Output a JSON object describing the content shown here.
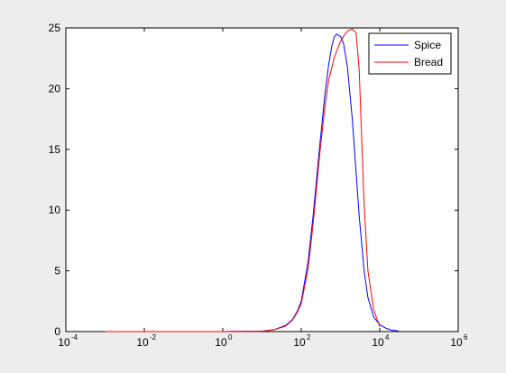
{
  "chart_data": {
    "type": "line",
    "title": "",
    "xlabel": "",
    "ylabel": "",
    "xscale": "log",
    "xlim": [
      0.0001,
      1000000
    ],
    "ylim": [
      0,
      25
    ],
    "grid": false,
    "legend_position": "top-right",
    "x_ticks": [
      {
        "base": "10",
        "exp": "-4"
      },
      {
        "base": "10",
        "exp": "-2"
      },
      {
        "base": "10",
        "exp": "0"
      },
      {
        "base": "10",
        "exp": "2"
      },
      {
        "base": "10",
        "exp": "4"
      },
      {
        "base": "10",
        "exp": "6"
      }
    ],
    "y_ticks": [
      "0",
      "5",
      "10",
      "15",
      "20",
      "25"
    ],
    "series": [
      {
        "name": "Spice",
        "color": "#0000ff",
        "x": [
          0.001,
          1,
          10,
          20,
          40,
          60,
          80,
          100,
          150,
          200,
          300,
          400,
          500,
          600,
          700,
          800,
          1000,
          1200,
          1500,
          2000,
          3000,
          4000,
          5000,
          7000,
          10000,
          15000,
          20000,
          30000
        ],
        "y": [
          0,
          0,
          0.03,
          0.15,
          0.5,
          1.0,
          1.7,
          2.5,
          5.8,
          9.5,
          15.5,
          19.5,
          22.0,
          23.5,
          24.3,
          24.5,
          24.3,
          23.7,
          21.8,
          17.5,
          9.5,
          5.0,
          2.8,
          1.2,
          0.55,
          0.25,
          0.12,
          0.05
        ]
      },
      {
        "name": "Bread",
        "color": "#ff0000",
        "x": [
          0.001,
          1,
          10,
          20,
          40,
          60,
          80,
          100,
          150,
          200,
          300,
          400,
          500,
          700,
          1000,
          1300,
          1600,
          2000,
          2500,
          3000,
          4000,
          5000,
          7000,
          10000
        ],
        "y": [
          0,
          0,
          0.03,
          0.15,
          0.45,
          0.95,
          1.6,
          2.3,
          5.2,
          8.8,
          14.8,
          18.5,
          20.7,
          22.6,
          23.9,
          24.5,
          24.8,
          24.9,
          24.6,
          21.5,
          10.5,
          5.0,
          1.8,
          0.4
        ]
      }
    ]
  }
}
